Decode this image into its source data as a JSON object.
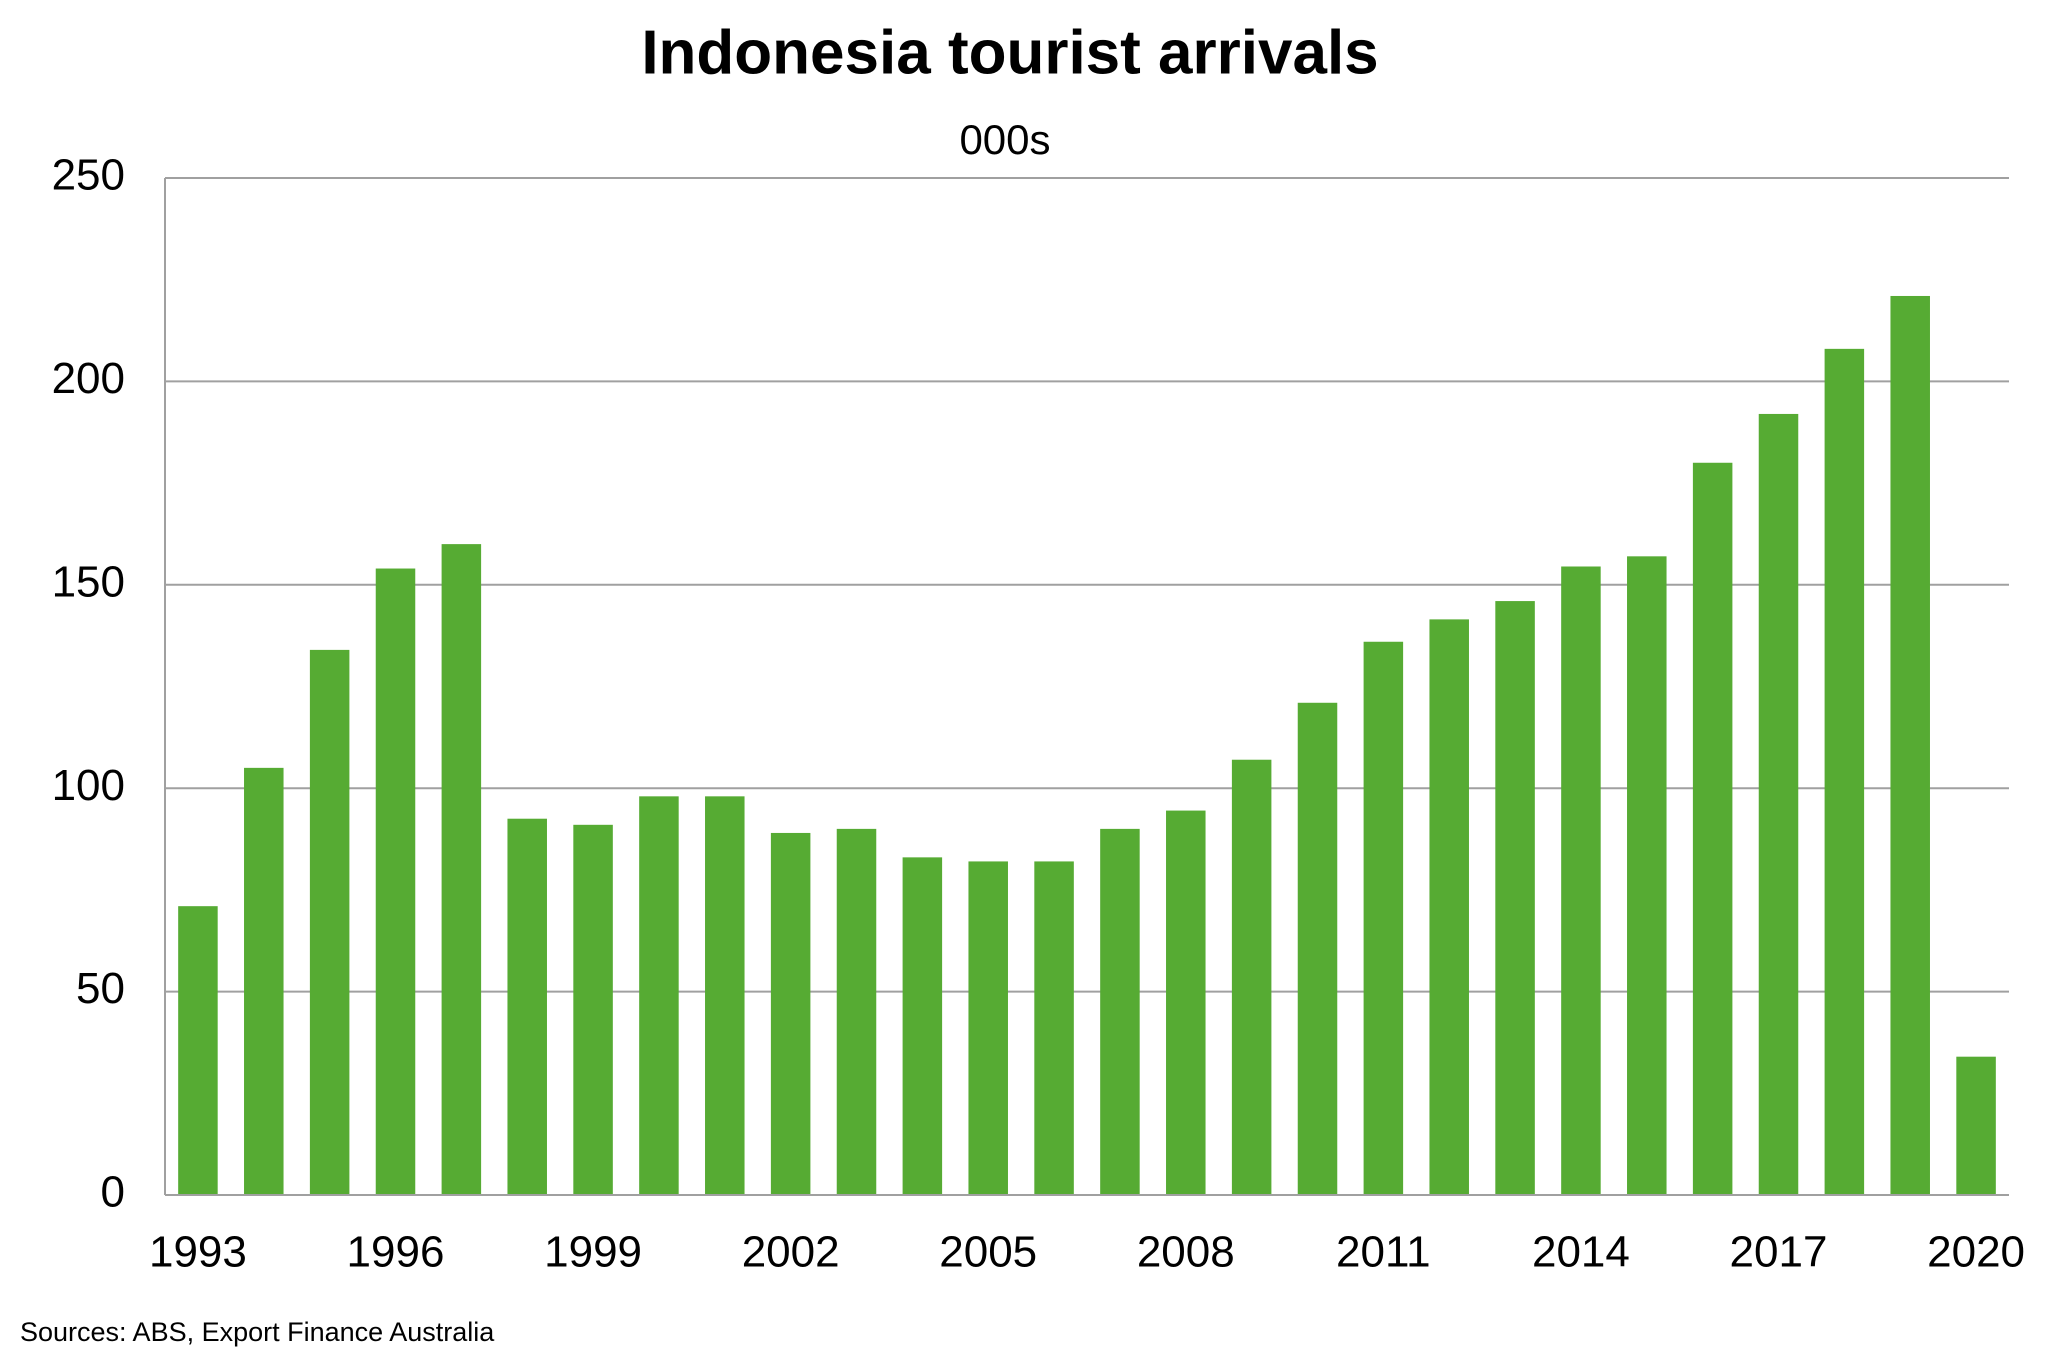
{
  "chart_data": {
    "type": "bar",
    "title": "Indonesia tourist arrivals",
    "subtitle": "000s",
    "categories": [
      "1993",
      null,
      null,
      "1996",
      null,
      null,
      "1999",
      null,
      null,
      "2002",
      null,
      null,
      "2005",
      null,
      null,
      "2008",
      null,
      null,
      "2011",
      null,
      null,
      "2014",
      null,
      null,
      "2017",
      null,
      null,
      "2020"
    ],
    "values": [
      71,
      105,
      134,
      154,
      160,
      92.5,
      91,
      98,
      98,
      89,
      90,
      83,
      82,
      82,
      90,
      94.5,
      107,
      121,
      136,
      141.5,
      146,
      154.5,
      157,
      180,
      192,
      208,
      221,
      34
    ],
    "color": "#56ab33",
    "ylim": [
      0,
      250
    ],
    "yticks": [
      0,
      50,
      100,
      150,
      200,
      250
    ],
    "grid": true,
    "source": "Sources: ABS, Export Finance Australia"
  }
}
